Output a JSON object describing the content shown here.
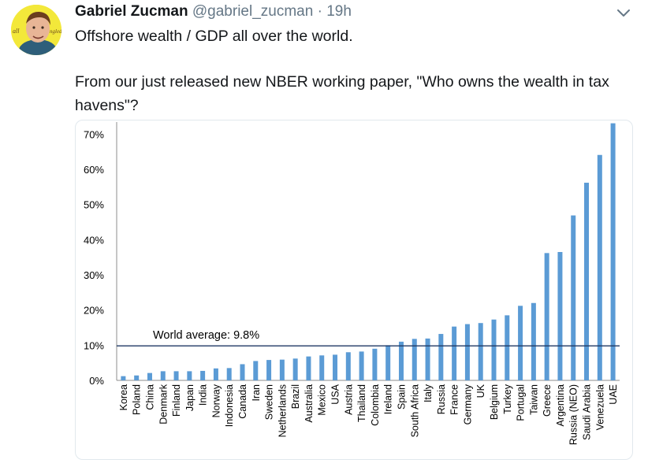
{
  "tweet": {
    "author_name": "Gabriel Zucman",
    "author_handle": "@gabriel_zucman",
    "separator": "·",
    "time": "19h",
    "text_line1": "Offshore wealth / GDP all over the world.",
    "text_line2": "From our just released new NBER working paper, \"Who owns the wealth in tax havens\"?",
    "avatar_text": "all ... ngled",
    "colors": {
      "avatar_bg": "#f3e83a",
      "text": "#14171a",
      "muted": "#657786"
    }
  },
  "icons": {
    "menu": "chevron-down-icon"
  },
  "chart_data": {
    "type": "bar",
    "title": "",
    "xlabel": "",
    "ylabel": "",
    "ylim": [
      0,
      73
    ],
    "yticks": [
      "0%",
      "10%",
      "20%",
      "30%",
      "40%",
      "50%",
      "60%",
      "70%"
    ],
    "ytick_values": [
      0,
      10,
      20,
      30,
      40,
      50,
      60,
      70
    ],
    "categories": [
      "Korea",
      "Poland",
      "China",
      "Denmark",
      "Finland",
      "Japan",
      "India",
      "Norway",
      "Indonesia",
      "Canada",
      "Iran",
      "Sweden",
      "Netherlands",
      "Brazil",
      "Australia",
      "Mexico",
      "USA",
      "Austria",
      "Thailand",
      "Colombia",
      "Ireland",
      "Spain",
      "South Africa",
      "Italy",
      "Russia",
      "France",
      "Germany",
      "UK",
      "Belgium",
      "Turkey",
      "Portugal",
      "Taiwan",
      "Greece",
      "Argentina",
      "Russia (NEO)",
      "Saudi Arabia",
      "Venezuela",
      "UAE"
    ],
    "values": [
      1.2,
      1.4,
      2.1,
      2.6,
      2.6,
      2.6,
      2.7,
      3.4,
      3.5,
      4.6,
      5.5,
      5.8,
      5.9,
      6.2,
      6.8,
      7.1,
      7.3,
      8.0,
      8.2,
      9.0,
      10.0,
      11.0,
      11.8,
      11.9,
      13.2,
      15.3,
      16.0,
      16.3,
      17.3,
      18.5,
      21.2,
      22.0,
      36.2,
      36.5,
      46.9,
      56.2,
      64.1,
      73.1
    ],
    "bar_color": "#5b9bd5",
    "annotation": {
      "label": "World average: 9.8%",
      "value": 9.8,
      "color": "#1f3864"
    },
    "grid": false,
    "legend": "none"
  }
}
